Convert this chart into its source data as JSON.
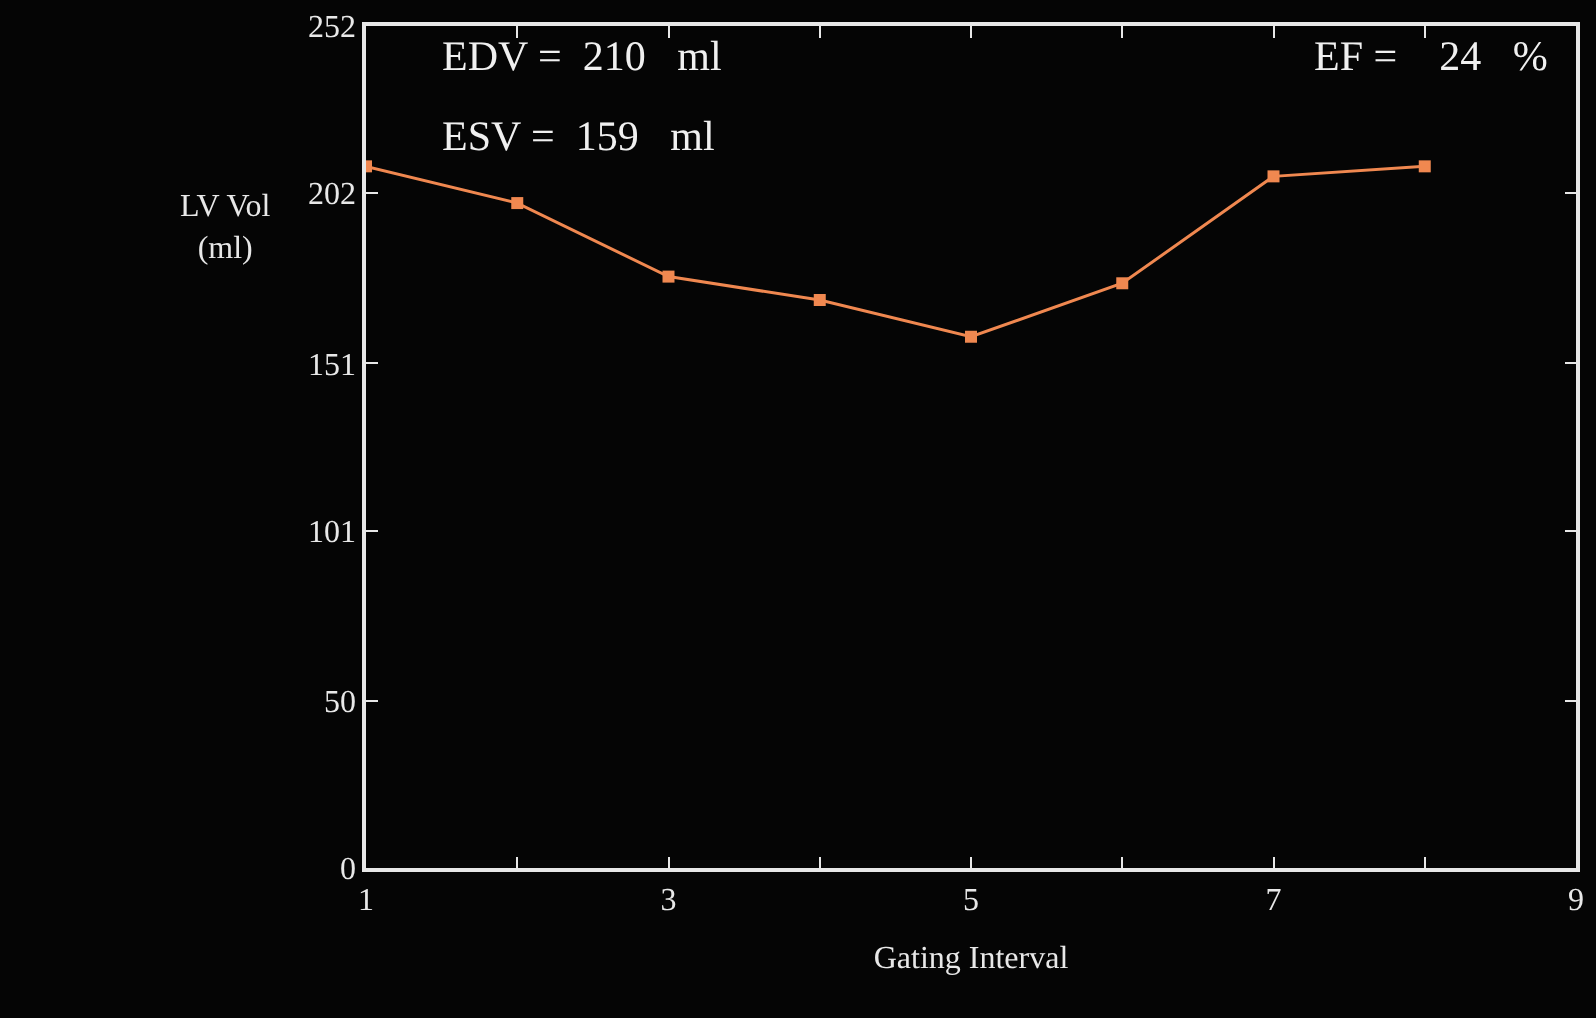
{
  "chart_data": {
    "type": "line",
    "xlabel": "Gating Interval",
    "ylabel": "LV Vol\n(ml)",
    "x": [
      1,
      2,
      3,
      4,
      5,
      6,
      7,
      8
    ],
    "series": [
      {
        "color": "#f08850",
        "values": [
          210,
          199,
          177,
          170,
          159,
          175,
          207,
          210
        ]
      }
    ],
    "xlim": [
      1,
      9
    ],
    "xticks": [
      1,
      {
        "value": 2,
        "label": null
      },
      3,
      {
        "value": 4,
        "label": null
      },
      5,
      {
        "value": 6,
        "label": null
      },
      7,
      {
        "value": 8,
        "label": null
      },
      9
    ],
    "ylim": [
      0,
      252
    ],
    "yticks": [
      0,
      50,
      101,
      151,
      202,
      252
    ],
    "annotations": [
      "EDV =  210   ml",
      "ESV =  159   ml",
      "EF =    24   %"
    ],
    "marker": "square",
    "line_style": "solid",
    "grid": false,
    "legend": false
  }
}
